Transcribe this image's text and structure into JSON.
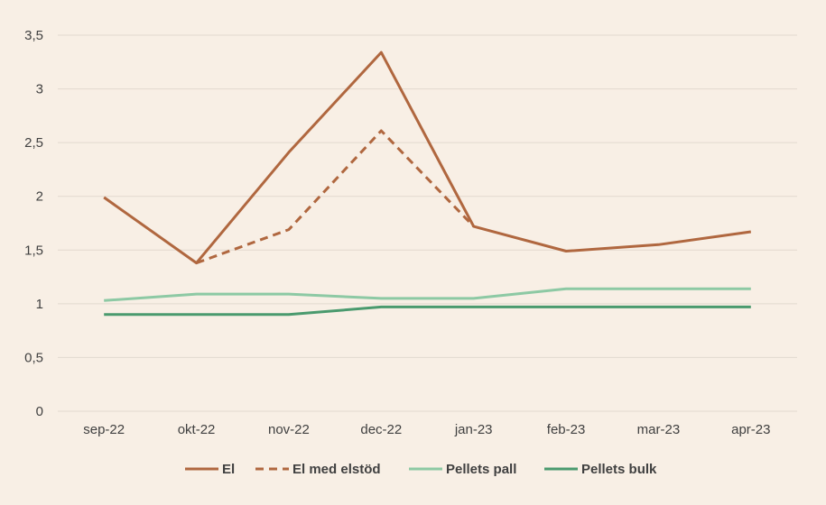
{
  "chart_data": {
    "type": "line",
    "title": "",
    "xlabel": "",
    "ylabel": "",
    "categories": [
      "sep-22",
      "okt-22",
      "nov-22",
      "dec-22",
      "jan-23",
      "feb-23",
      "mar-23",
      "apr-23"
    ],
    "ylim": [
      0,
      3.5
    ],
    "yticks": [
      0,
      0.5,
      1,
      1.5,
      2,
      2.5,
      3,
      3.5
    ],
    "ytick_labels": [
      "0",
      "0,5",
      "1",
      "1,5",
      "2",
      "2,5",
      "3",
      "3,5"
    ],
    "grid": true,
    "legend_position": "bottom",
    "series": [
      {
        "name": "El",
        "color": "#b0673f",
        "dash": "solid",
        "values": [
          1.99,
          1.38,
          2.41,
          3.34,
          1.72,
          1.49,
          1.55,
          1.67
        ]
      },
      {
        "name": "El med elstöd",
        "color": "#b0673f",
        "dash": "dashed",
        "values": [
          null,
          1.38,
          1.69,
          2.61,
          1.72,
          null,
          null,
          null
        ]
      },
      {
        "name": "Pellets pall",
        "color": "#8dc9a4",
        "dash": "solid",
        "values": [
          1.03,
          1.09,
          1.09,
          1.05,
          1.05,
          1.14,
          1.14,
          1.14
        ]
      },
      {
        "name": "Pellets bulk",
        "color": "#4a9a6e",
        "dash": "solid",
        "values": [
          0.9,
          0.9,
          0.9,
          0.97,
          0.97,
          0.97,
          0.97,
          0.97
        ]
      }
    ]
  }
}
